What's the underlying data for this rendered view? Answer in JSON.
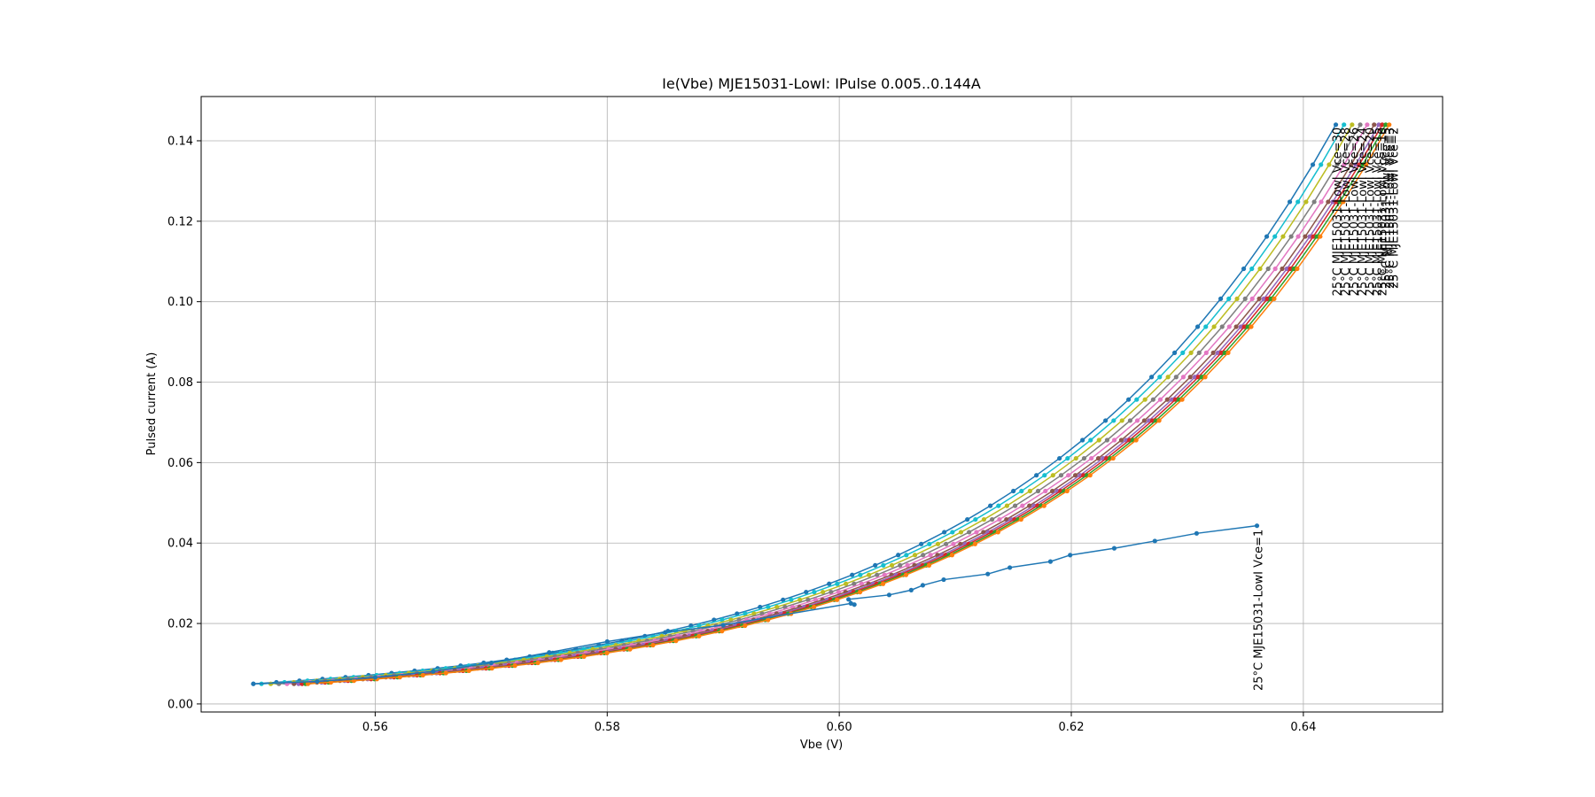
{
  "chart_data": {
    "type": "line",
    "title": "Ie(Vbe) MJE15031-LowI: IPulse 0.005..0.144A",
    "xlabel": "Vbe (V)",
    "ylabel": "Pulsed current (A)",
    "xlim": [
      0.545,
      0.652
    ],
    "ylim": [
      -0.002,
      0.151
    ],
    "grid": true,
    "legend": "none",
    "x_ticks": [
      "0.56",
      "0.58",
      "0.60",
      "0.62",
      "0.64"
    ],
    "x_tick_values": [
      0.56,
      0.58,
      0.6,
      0.62,
      0.64
    ],
    "y_ticks": [
      "0.00",
      "0.02",
      "0.04",
      "0.06",
      "0.08",
      "0.10",
      "0.12",
      "0.14"
    ],
    "y_tick_values": [
      0.0,
      0.02,
      0.04,
      0.06,
      0.08,
      0.1,
      0.12,
      0.14
    ],
    "curve_model": {
      "type": "exponential",
      "i_start": 0.005,
      "i_end": 0.144,
      "points": 48
    },
    "series": [
      {
        "name": "25°C MJE15031-LowI Vce=30",
        "color": "#1f77b4",
        "v_start": 0.5495,
        "v_end": 0.6428
      },
      {
        "name": "25°C MJE15031-LowI Vce=28",
        "color": "#17becf",
        "v_start": 0.5502,
        "v_end": 0.6435
      },
      {
        "name": "25°C MJE15031-LowI Vce=26",
        "color": "#bcbd22",
        "v_start": 0.551,
        "v_end": 0.6442
      },
      {
        "name": "25°C MJE15031-LowI Vce=24",
        "color": "#7f7f7f",
        "v_start": 0.5517,
        "v_end": 0.6449
      },
      {
        "name": "25°C MJE15031-LowI Vce=20",
        "color": "#e377c2",
        "v_start": 0.5524,
        "v_end": 0.6455
      },
      {
        "name": "25°C MJE15031-LowI Vce=15",
        "color": "#8c564b",
        "v_start": 0.553,
        "v_end": 0.6461
      },
      {
        "name": "25°C MJE15031-LowI Vce=10",
        "color": "#9467bd",
        "v_start": 0.5534,
        "v_end": 0.6465
      },
      {
        "name": "25°C MJE15031-LowI Vce=5",
        "color": "#d62728",
        "v_start": 0.5537,
        "v_end": 0.6468
      },
      {
        "name": "25°C MJE15031-LowI Vce=3",
        "color": "#2ca02c",
        "v_start": 0.554,
        "v_end": 0.6471
      },
      {
        "name": "25°C MJE15031-LowI Vce=2",
        "color": "#ff7f0e",
        "v_start": 0.5542,
        "v_end": 0.6474
      }
    ],
    "vce1_series": {
      "name": "25°C MJE15031-LowI Vce=1",
      "color": "#1f77b4",
      "points": [
        [
          0.5495,
          0.005
        ],
        [
          0.555,
          0.0056
        ],
        [
          0.56,
          0.0066
        ],
        [
          0.565,
          0.0081
        ],
        [
          0.57,
          0.0102
        ],
        [
          0.575,
          0.0128
        ],
        [
          0.58,
          0.0155
        ],
        [
          0.585,
          0.0178
        ],
        [
          0.59,
          0.0196
        ],
        [
          0.601,
          0.025
        ],
        [
          0.6013,
          0.0247
        ],
        [
          0.6008,
          0.026
        ],
        [
          0.6043,
          0.0271
        ],
        [
          0.6062,
          0.0283
        ],
        [
          0.6072,
          0.0295
        ],
        [
          0.609,
          0.0309
        ],
        [
          0.6128,
          0.0323
        ],
        [
          0.6147,
          0.0339
        ],
        [
          0.6182,
          0.0354
        ],
        [
          0.6199,
          0.037
        ],
        [
          0.6237,
          0.0387
        ],
        [
          0.6272,
          0.0405
        ],
        [
          0.6308,
          0.0424
        ],
        [
          0.636,
          0.0443
        ]
      ]
    }
  }
}
